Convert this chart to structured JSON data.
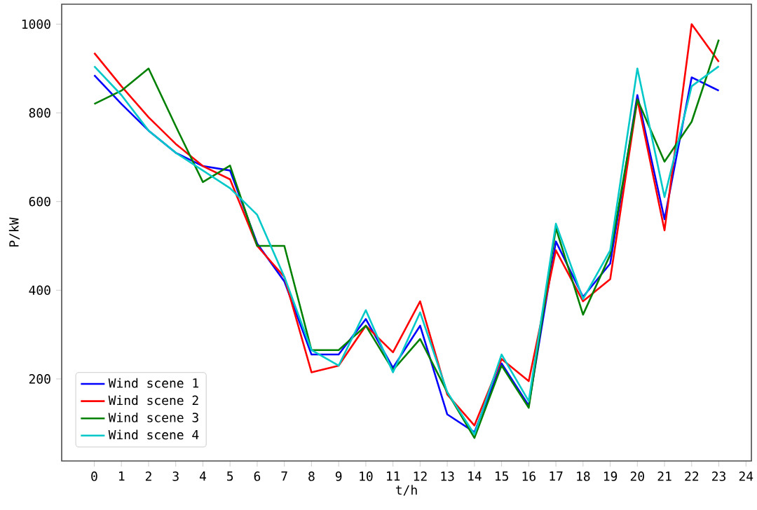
{
  "chart_data": {
    "type": "line",
    "xlabel": "t/h",
    "ylabel": "P/kW",
    "x": [
      0,
      1,
      2,
      3,
      4,
      5,
      6,
      7,
      8,
      9,
      10,
      11,
      12,
      13,
      14,
      15,
      16,
      17,
      18,
      19,
      20,
      21,
      22,
      23
    ],
    "series": [
      {
        "name": "Wind scene 1",
        "color": "#0000ff",
        "values": [
          885,
          820,
          760,
          710,
          680,
          670,
          505,
          420,
          255,
          255,
          335,
          225,
          320,
          120,
          80,
          235,
          140,
          510,
          385,
          460,
          840,
          560,
          880,
          850
        ]
      },
      {
        "name": "Wind scene 2",
        "color": "#ff0000",
        "values": [
          935,
          860,
          790,
          730,
          680,
          650,
          500,
          430,
          215,
          230,
          320,
          260,
          375,
          165,
          95,
          245,
          195,
          490,
          375,
          425,
          830,
          535,
          1000,
          915
        ]
      },
      {
        "name": "Wind scene 3",
        "color": "#008000",
        "values": [
          820,
          850,
          900,
          770,
          644,
          681,
          500,
          500,
          265,
          265,
          320,
          220,
          290,
          170,
          67,
          230,
          135,
          540,
          345,
          480,
          830,
          690,
          780,
          965
        ]
      },
      {
        "name": "Wind scene 4",
        "color": "#00c8c8",
        "values": [
          905,
          840,
          760,
          710,
          670,
          630,
          570,
          430,
          265,
          230,
          355,
          215,
          350,
          170,
          75,
          255,
          150,
          550,
          380,
          490,
          900,
          610,
          860,
          905
        ]
      }
    ],
    "xlim": [
      -1.2,
      24.2
    ],
    "ylim": [
      15,
      1045
    ],
    "xticks": [
      0,
      1,
      2,
      3,
      4,
      5,
      6,
      7,
      8,
      9,
      10,
      11,
      12,
      13,
      14,
      15,
      16,
      17,
      18,
      19,
      20,
      21,
      22,
      23,
      24
    ],
    "yticks": [
      200,
      400,
      600,
      800,
      1000
    ],
    "legend": "bottom left",
    "grid": false,
    "marker": "none",
    "line_style": "solid"
  }
}
